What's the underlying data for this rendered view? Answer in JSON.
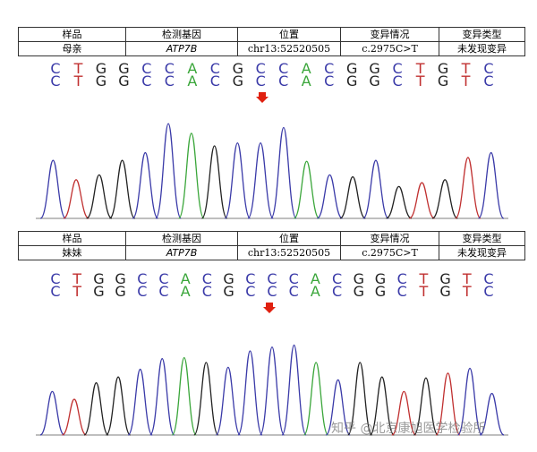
{
  "table_headers": [
    "样品",
    "检测基因",
    "位置",
    "变异情况",
    "变异类型"
  ],
  "panels": [
    {
      "row": {
        "sample": "母亲",
        "gene": "ATP7B",
        "position": "chr13:52520505",
        "variant": "c.2975C>T",
        "variant_type": "未发现变异"
      },
      "sequence_line1": [
        "C",
        "T",
        "G",
        "G",
        "C",
        "C",
        "A",
        "C",
        "G",
        "C",
        "C",
        "A",
        "C",
        "G",
        "G",
        "C",
        "T",
        "G",
        "T",
        "C"
      ],
      "sequence_line2": [
        "C",
        "T",
        "G",
        "G",
        "C",
        "C",
        "A",
        "C",
        "G",
        "C",
        "C",
        "A",
        "C",
        "G",
        "G",
        "C",
        "T",
        "G",
        "T",
        "C"
      ]
    },
    {
      "row": {
        "sample": "妹妹",
        "gene": "ATP7B",
        "position": "chr13:52520505",
        "variant": "c.2975C>T",
        "variant_type": "未发现变异"
      },
      "sequence_line1": [
        "C",
        "T",
        "G",
        "G",
        "C",
        "C",
        "A",
        "C",
        "G",
        "C",
        "C",
        "C",
        "A",
        "C",
        "G",
        "G",
        "C",
        "T",
        "G",
        "T",
        "C"
      ],
      "sequence_line2": [
        "C",
        "T",
        "G",
        "G",
        "C",
        "C",
        "A",
        "C",
        "G",
        "C",
        "C",
        "C",
        "A",
        "C",
        "G",
        "G",
        "C",
        "T",
        "G",
        "T",
        "C"
      ]
    }
  ],
  "base_colors": {
    "A": "#3aa63a",
    "C": "#3a3aa8",
    "G": "#222222",
    "T": "#c03030"
  },
  "marker_color": "#e02010",
  "chromatograms": [
    {
      "peaks": [
        [
          "C",
          0.6
        ],
        [
          "T",
          0.4
        ],
        [
          "G",
          0.45
        ],
        [
          "G",
          0.6
        ],
        [
          "C",
          0.68
        ],
        [
          "C",
          0.98
        ],
        [
          "A",
          0.88
        ],
        [
          "G",
          0.75
        ],
        [
          "C",
          0.78
        ],
        [
          "C",
          0.78
        ],
        [
          "C",
          0.94
        ],
        [
          "A",
          0.59
        ],
        [
          "C",
          0.45
        ],
        [
          "G",
          0.43
        ],
        [
          "C",
          0.6
        ],
        [
          "G",
          0.33
        ],
        [
          "T",
          0.37
        ],
        [
          "G",
          0.4
        ],
        [
          "T",
          0.63
        ],
        [
          "C",
          0.68
        ]
      ]
    },
    {
      "peaks": [
        [
          "C",
          0.45
        ],
        [
          "T",
          0.37
        ],
        [
          "G",
          0.54
        ],
        [
          "G",
          0.6
        ],
        [
          "C",
          0.68
        ],
        [
          "C",
          0.79
        ],
        [
          "A",
          0.8
        ],
        [
          "G",
          0.75
        ],
        [
          "C",
          0.7
        ],
        [
          "C",
          0.87
        ],
        [
          "C",
          0.91
        ],
        [
          "C",
          0.93
        ],
        [
          "A",
          0.75
        ],
        [
          "C",
          0.57
        ],
        [
          "G",
          0.75
        ],
        [
          "G",
          0.6
        ],
        [
          "T",
          0.45
        ],
        [
          "G",
          0.59
        ],
        [
          "T",
          0.64
        ],
        [
          "C",
          0.69
        ],
        [
          "C",
          0.43
        ]
      ]
    }
  ],
  "watermark": "知乎 @北京康旭医学检验所"
}
